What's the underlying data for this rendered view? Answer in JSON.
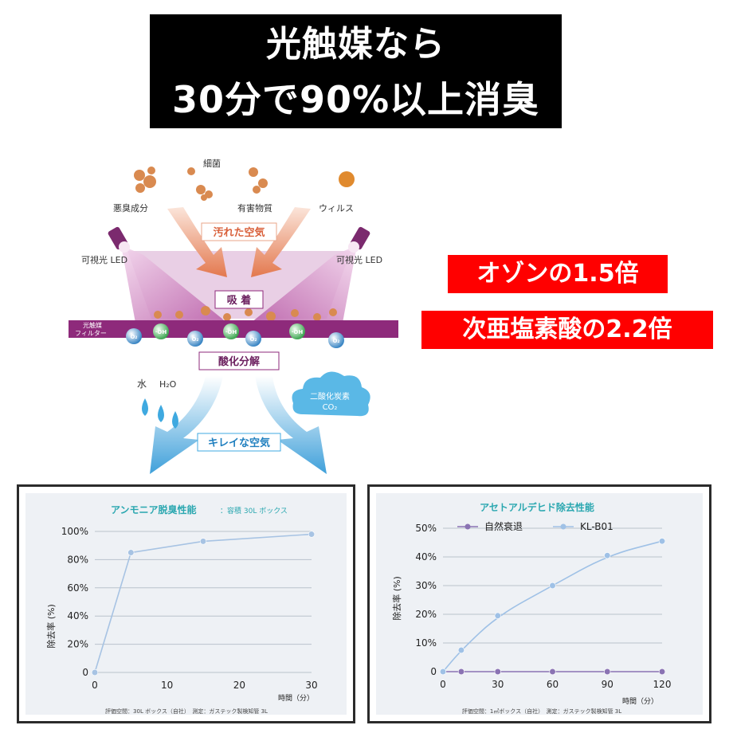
{
  "headline": {
    "line1": "光触媒なら",
    "line2": "30分で90%以上消臭"
  },
  "callouts": {
    "ozone": "オゾンの1.5倍",
    "hypochlorous": "次亜塩素酸の2.2倍"
  },
  "diagram": {
    "labels": {
      "saikin": "細菌",
      "akushu": "悪臭成分",
      "yugai": "有害物質",
      "virus": "ウィルス",
      "dirty_air": "汚れた空気",
      "led_left": "可視光 LED",
      "led_right": "可視光 LED",
      "adsorption": "吸 着",
      "filter_line1": "光触媒",
      "filter_line2": "フィルター",
      "o2": "O₂",
      "oh": "·OH",
      "oxidation": "酸化分解",
      "water": "水",
      "h2o": "H₂O",
      "co2_line1": "二酸化炭素",
      "co2_line2": "CO₂",
      "clean_air": "キレイな空気"
    },
    "colors": {
      "purple": "#8e2a7b",
      "blue": "#3fa9e0",
      "orange_arrow": "#e3825c",
      "particle": "#d98a50"
    }
  },
  "chart_data": [
    {
      "type": "line",
      "title": "アンモニア脱臭性能：容積 30L ボックス",
      "title_main": "アンモニア脱臭性能",
      "title_sub": "：容積 30L ボックス",
      "xlabel": "時間（分）",
      "ylabel": "除去率 (%)",
      "x": [
        0,
        5,
        15,
        30
      ],
      "series": [
        {
          "values": [
            0,
            85,
            93,
            98
          ],
          "color": "#a7c3e3"
        }
      ],
      "xticks": [
        "0",
        "10",
        "20",
        "30"
      ],
      "yticks": [
        "0",
        "20%",
        "40%",
        "60%",
        "80%",
        "100%"
      ],
      "xlim": [
        0,
        30
      ],
      "ylim": [
        0,
        100
      ],
      "grid": "horizontal",
      "footnote": "評価空間：30L ボックス（自社）　測定：ガステック製検知管 3L"
    },
    {
      "type": "line",
      "title": "アセトアルデヒド除去性能",
      "xlabel": "時間（分）",
      "ylabel": "除去率 (%)",
      "legend_position": "top-left",
      "x": [
        0,
        10,
        30,
        60,
        90,
        120
      ],
      "series": [
        {
          "name": "自然衰退",
          "values": [
            0,
            0,
            0,
            0,
            0,
            0
          ],
          "color": "#8a73b3"
        },
        {
          "name": "KL-B01",
          "values": [
            0,
            7.5,
            19.5,
            30,
            40.5,
            45.5
          ],
          "color": "#9fc1e6"
        }
      ],
      "xticks": [
        "0",
        "30",
        "60",
        "90",
        "120"
      ],
      "yticks": [
        "0",
        "10%",
        "20%",
        "30%",
        "40%",
        "50%"
      ],
      "xlim": [
        0,
        120
      ],
      "ylim": [
        0,
        50
      ],
      "grid": "horizontal",
      "footnote": "評価空間：1㎥ボックス（自社）　測定：ガステック製検知管 3L"
    }
  ]
}
